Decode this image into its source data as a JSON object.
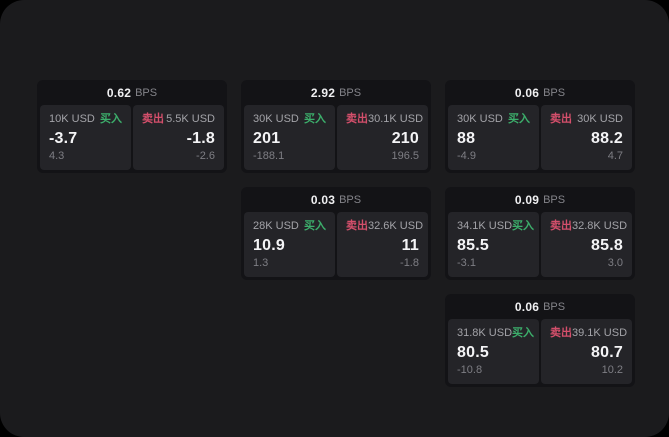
{
  "labels": {
    "bps_unit": "BPS",
    "buy": "买入",
    "sell": "卖出"
  },
  "colors": {
    "page_bg": "#000000",
    "panel_bg": "#1b1b1d",
    "card_bg": "#131316",
    "tile_bg": "#242428",
    "buy_green": "#3cae6b",
    "sell_red": "#d44f6b",
    "value_text": "#f4f4f6",
    "label_gray": "#a3a3a8",
    "sub_gray": "#7e7e84"
  },
  "cards": [
    {
      "row": 1,
      "col": 1,
      "spread_bps": "0.62",
      "buy": {
        "amount": "10K USD",
        "price": "-3.7",
        "delta": "4.3"
      },
      "sell": {
        "amount": "5.5K USD",
        "price": "-1.8",
        "delta": "-2.6"
      }
    },
    {
      "row": 1,
      "col": 2,
      "spread_bps": "2.92",
      "buy": {
        "amount": "30K USD",
        "price": "201",
        "delta": "-188.1"
      },
      "sell": {
        "amount": "30.1K USD",
        "price": "210",
        "delta": "196.5"
      }
    },
    {
      "row": 1,
      "col": 3,
      "spread_bps": "0.06",
      "buy": {
        "amount": "30K USD",
        "price": "88",
        "delta": "-4.9"
      },
      "sell": {
        "amount": "30K USD",
        "price": "88.2",
        "delta": "4.7"
      }
    },
    {
      "row": 2,
      "col": 2,
      "spread_bps": "0.03",
      "buy": {
        "amount": "28K USD",
        "price": "10.9",
        "delta": "1.3"
      },
      "sell": {
        "amount": "32.6K USD",
        "price": "11",
        "delta": "-1.8"
      }
    },
    {
      "row": 2,
      "col": 3,
      "spread_bps": "0.09",
      "buy": {
        "amount": "34.1K USD",
        "price": "85.5",
        "delta": "-3.1"
      },
      "sell": {
        "amount": "32.8K USD",
        "price": "85.8",
        "delta": "3.0"
      }
    },
    {
      "row": 3,
      "col": 3,
      "spread_bps": "0.06",
      "buy": {
        "amount": "31.8K USD",
        "price": "80.5",
        "delta": "-10.8"
      },
      "sell": {
        "amount": "39.1K USD",
        "price": "80.7",
        "delta": "10.2"
      }
    }
  ]
}
